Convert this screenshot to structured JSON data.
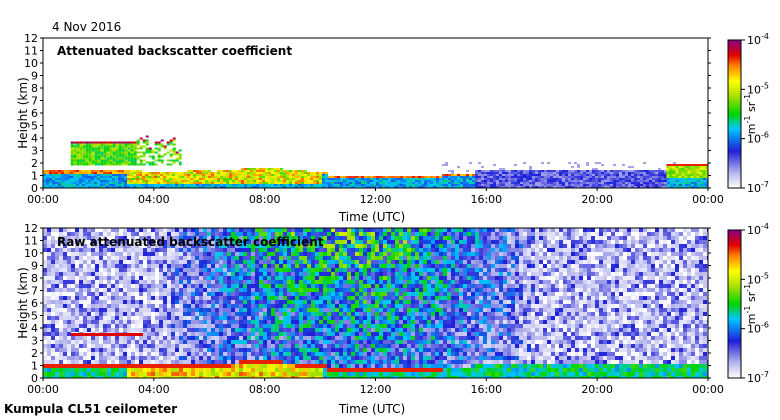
{
  "date": "4 Nov 2016",
  "footer": "Kumpula CL51 ceilometer",
  "chart_data": [
    {
      "type": "heatmap",
      "title": "Attenuated backscatter coefficient",
      "xlabel": "Time (UTC)",
      "ylabel": "Height (km)",
      "xticks": [
        "00:00",
        "04:00",
        "08:00",
        "12:00",
        "16:00",
        "20:00",
        "00:00"
      ],
      "yticks": [
        "0",
        "1",
        "2",
        "3",
        "4",
        "5",
        "6",
        "7",
        "8",
        "9",
        "10",
        "11",
        "12"
      ],
      "xlim_hours": [
        0,
        24
      ],
      "ylim": [
        0,
        12
      ],
      "colorbar": {
        "scale": "log",
        "range": [
          1e-07,
          0.0001
        ],
        "ticks": [
          "10^-7",
          "10^-6",
          "10^-5",
          "10^-4"
        ],
        "unit": "m^-1 sr^-1"
      },
      "features": [
        {
          "name": "boundary layer aerosol",
          "start_hour": 0,
          "end_hour": 24,
          "top_km": 1.5
        },
        {
          "name": "cloud layer",
          "start_hour": 1.0,
          "end_hour": 5.0,
          "base_km": 1.8,
          "top_km": 3.6
        },
        {
          "name": "low cloud",
          "start_hour": 10.2,
          "end_hour": 14.2,
          "top_km": 0.8
        }
      ]
    },
    {
      "type": "heatmap",
      "title": "Raw attenuated backscatter coefficient",
      "xlabel": "Time (UTC)",
      "ylabel": "Height (km)",
      "xticks": [
        "00:00",
        "04:00",
        "08:00",
        "12:00",
        "16:00",
        "20:00",
        "00:00"
      ],
      "yticks": [
        "0",
        "1",
        "2",
        "3",
        "4",
        "5",
        "6",
        "7",
        "8",
        "9",
        "10",
        "11",
        "12"
      ],
      "xlim_hours": [
        0,
        24
      ],
      "ylim": [
        0,
        12
      ],
      "colorbar": {
        "scale": "log",
        "range": [
          1e-07,
          0.0001
        ],
        "ticks": [
          "10^-7",
          "10^-6",
          "10^-5",
          "10^-4"
        ],
        "unit": "m^-1 sr^-1"
      }
    }
  ]
}
